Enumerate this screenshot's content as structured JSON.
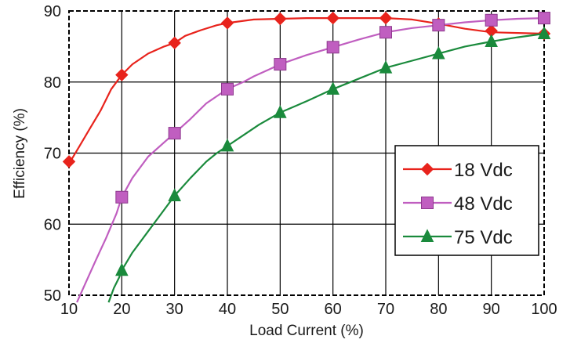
{
  "chart_data": {
    "type": "line",
    "title": "",
    "xlabel": "Load Current (%)",
    "ylabel": "Efficiency (%)",
    "xlim": [
      10,
      100
    ],
    "ylim": [
      50,
      90
    ],
    "x_ticks": [
      "10",
      "20",
      "30",
      "40",
      "50",
      "60",
      "70",
      "80",
      "90",
      "100"
    ],
    "y_ticks": [
      "50",
      "60",
      "70",
      "80",
      "90"
    ],
    "grid": true,
    "legend_position": "lower-right",
    "series": [
      {
        "name": "18  Vdc",
        "color": "#e8231c",
        "marker": "diamond",
        "line": [
          [
            10,
            68.5
          ],
          [
            12,
            71
          ],
          [
            14,
            73.5
          ],
          [
            16,
            76
          ],
          [
            18,
            79
          ],
          [
            20,
            81
          ],
          [
            22,
            82.5
          ],
          [
            25,
            84
          ],
          [
            28,
            85
          ],
          [
            30,
            85.5
          ],
          [
            32,
            86.5
          ],
          [
            35,
            87.3
          ],
          [
            38,
            88
          ],
          [
            40,
            88.3
          ],
          [
            45,
            88.8
          ],
          [
            50,
            88.9
          ],
          [
            55,
            89
          ],
          [
            60,
            89
          ],
          [
            65,
            89
          ],
          [
            70,
            89
          ],
          [
            75,
            88.8
          ],
          [
            80,
            88.2
          ],
          [
            85,
            87.5
          ],
          [
            90,
            87
          ],
          [
            95,
            86.9
          ],
          [
            100,
            86.8
          ]
        ],
        "markers": [
          [
            10,
            68.8
          ],
          [
            20,
            81
          ],
          [
            30,
            85.5
          ],
          [
            40,
            88.3
          ],
          [
            50,
            88.9
          ],
          [
            60,
            89
          ],
          [
            70,
            89
          ],
          [
            80,
            88.2
          ],
          [
            90,
            87.2
          ],
          [
            100,
            86.8
          ]
        ]
      },
      {
        "name": "48  Vdc",
        "color": "#c05ec0",
        "marker": "square",
        "line": [
          [
            11.5,
            49
          ],
          [
            13,
            51.5
          ],
          [
            15,
            54.8
          ],
          [
            17,
            58
          ],
          [
            19,
            61.5
          ],
          [
            20,
            63.8
          ],
          [
            22,
            66.5
          ],
          [
            25,
            69.5
          ],
          [
            28,
            71.5
          ],
          [
            30,
            72.8
          ],
          [
            33,
            74.8
          ],
          [
            36,
            77
          ],
          [
            38,
            78
          ],
          [
            40,
            79
          ],
          [
            43,
            80
          ],
          [
            45,
            80.8
          ],
          [
            48,
            81.8
          ],
          [
            50,
            82.5
          ],
          [
            55,
            83.8
          ],
          [
            60,
            84.9
          ],
          [
            65,
            86
          ],
          [
            70,
            87
          ],
          [
            75,
            87.6
          ],
          [
            80,
            88
          ],
          [
            85,
            88.4
          ],
          [
            90,
            88.7
          ],
          [
            95,
            88.9
          ],
          [
            100,
            89
          ]
        ],
        "markers": [
          [
            20,
            63.8
          ],
          [
            30,
            72.8
          ],
          [
            40,
            79
          ],
          [
            50,
            82.5
          ],
          [
            60,
            84.9
          ],
          [
            70,
            87
          ],
          [
            80,
            88
          ],
          [
            90,
            88.7
          ],
          [
            100,
            89
          ]
        ]
      },
      {
        "name": "75  Vdc",
        "color": "#1a8a3c",
        "marker": "triangle",
        "line": [
          [
            17.5,
            49
          ],
          [
            18.5,
            51
          ],
          [
            19.5,
            52.5
          ],
          [
            20,
            53.5
          ],
          [
            22,
            56
          ],
          [
            25,
            59
          ],
          [
            28,
            62
          ],
          [
            30,
            64
          ],
          [
            33,
            66.5
          ],
          [
            36,
            68.8
          ],
          [
            38,
            70
          ],
          [
            40,
            71
          ],
          [
            43,
            72.5
          ],
          [
            46,
            74
          ],
          [
            50,
            75.7
          ],
          [
            55,
            77.3
          ],
          [
            60,
            79
          ],
          [
            65,
            80.5
          ],
          [
            70,
            82
          ],
          [
            75,
            83
          ],
          [
            80,
            84
          ],
          [
            85,
            85
          ],
          [
            90,
            85.7
          ],
          [
            95,
            86.3
          ],
          [
            100,
            86.8
          ]
        ],
        "markers": [
          [
            20,
            53.5
          ],
          [
            30,
            64
          ],
          [
            40,
            71
          ],
          [
            50,
            75.7
          ],
          [
            60,
            79
          ],
          [
            70,
            82
          ],
          [
            80,
            84
          ],
          [
            90,
            85.7
          ],
          [
            100,
            86.8
          ]
        ]
      }
    ]
  }
}
